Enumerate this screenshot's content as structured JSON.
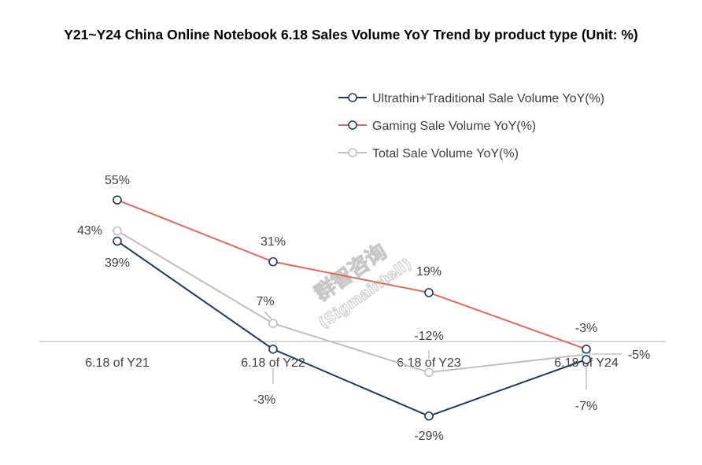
{
  "chart_data": {
    "type": "line",
    "title": "Y21~Y24 China Online Notebook 6.18 Sales Volume YoY Trend by product type (Unit:  %)",
    "categories": [
      "6.18 of Y21",
      "6.18 of Y22",
      "6.18 of Y23",
      "6.18 of Y24"
    ],
    "ylim": [
      -35,
      60
    ],
    "series": [
      {
        "name": "Ultrathin+Traditional Sale Volume YoY(%)",
        "color": "#1f3864",
        "values": [
          39,
          -3,
          -29,
          -7
        ],
        "labels": [
          "39%",
          "-3%",
          "-29%",
          "-7%"
        ]
      },
      {
        "name": "Gaming Sale Volume YoY(%)",
        "color": "#e8665a",
        "values": [
          55,
          31,
          19,
          -3
        ],
        "labels": [
          "55%",
          "31%",
          "19%",
          "-3%"
        ]
      },
      {
        "name": "Total Sale Volume YoY(%)",
        "color": "#bfbfbf",
        "values": [
          43,
          7,
          -12,
          -5
        ],
        "labels": [
          "43%",
          "7%",
          "-12%",
          "-5%"
        ]
      }
    ]
  },
  "watermark": {
    "line1": "群智咨询",
    "line2": "(Sigmaintell)"
  }
}
